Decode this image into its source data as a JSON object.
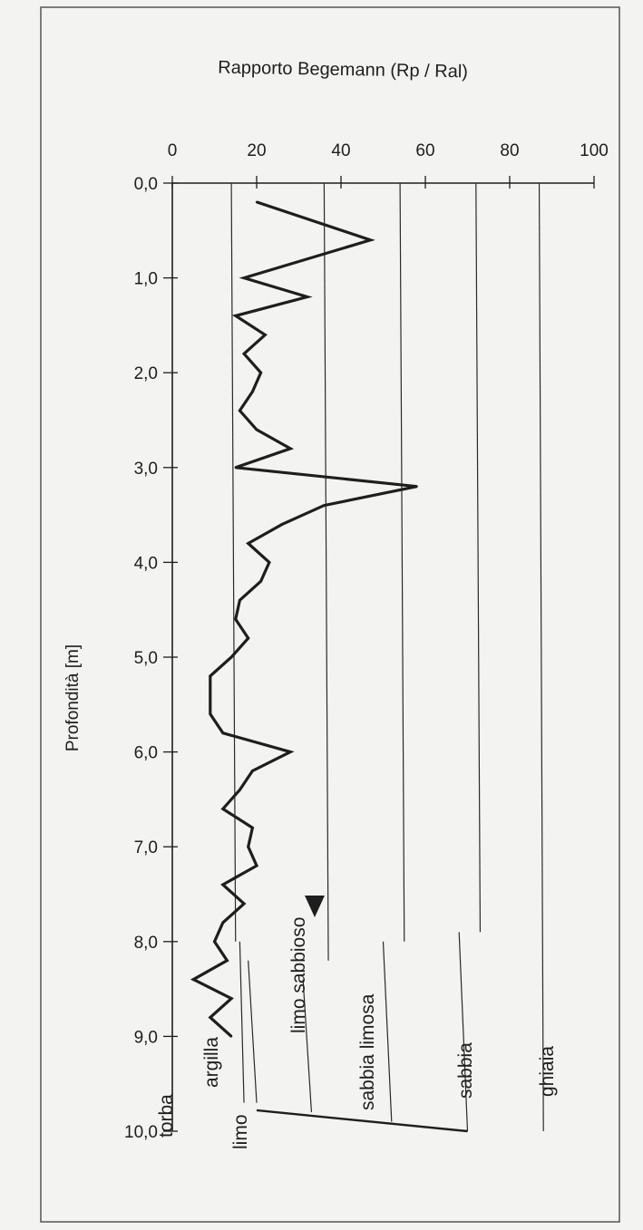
{
  "chart_data": {
    "type": "line",
    "title": "Rapporto Begemann (Rp / Ral)",
    "ylabel": "Profondità [m]",
    "xlim": [
      0,
      100
    ],
    "ylim": [
      0,
      10
    ],
    "x_ticks": [
      "0",
      "20",
      "40",
      "60",
      "80",
      "100"
    ],
    "y_ticks": [
      "0,0",
      "1,0",
      "2,0",
      "3,0",
      "4,0",
      "5,0",
      "6,0",
      "7,0",
      "8,0",
      "9,0",
      "10,0"
    ],
    "series": [
      {
        "depth": [
          0.2,
          0.6,
          1.0,
          1.2,
          1.4,
          1.6,
          1.8,
          2.0,
          2.2,
          2.4,
          2.6,
          2.8,
          3.0,
          3.2,
          3.4,
          3.6,
          3.8,
          4.0,
          4.2,
          4.4,
          4.6,
          4.8,
          5.0,
          5.2,
          5.4,
          5.6,
          5.8,
          6.0,
          6.2,
          6.4,
          6.6,
          6.8,
          7.0,
          7.2,
          7.4,
          7.6,
          7.8,
          8.0,
          8.2,
          8.4,
          8.6,
          8.8,
          9.0
        ],
        "ratio": [
          20,
          47,
          17,
          32,
          15,
          22,
          17,
          21,
          19,
          16,
          20,
          28,
          15,
          58,
          36,
          26,
          18,
          23,
          21,
          16,
          15,
          18,
          14,
          9,
          9,
          9,
          12,
          28,
          19,
          16,
          12,
          19,
          18,
          20,
          12,
          17,
          12,
          10,
          13,
          5,
          14,
          9,
          14
        ]
      }
    ],
    "zone_lines": [
      {
        "top": 8.2,
        "bottom": 9.7,
        "x_top": 18,
        "x_bottom": 20
      },
      {
        "top": 8.4,
        "bottom": 9.8,
        "x_top": 31,
        "x_bottom": 33
      },
      {
        "top": 8.0,
        "bottom": 9.9,
        "x_top": 50,
        "x_bottom": 52
      },
      {
        "top": 7.9,
        "bottom": 10.0,
        "x_top": 68,
        "x_bottom": 70
      },
      {
        "top": 0.0,
        "bottom": 10.0,
        "x_top": 87,
        "x_bottom": 88
      }
    ],
    "zones": [
      "torba",
      "argilla",
      "limo",
      "limo sabbioso",
      "sabbia limosa",
      "sabbia",
      "ghiaia"
    ],
    "grid": false
  }
}
